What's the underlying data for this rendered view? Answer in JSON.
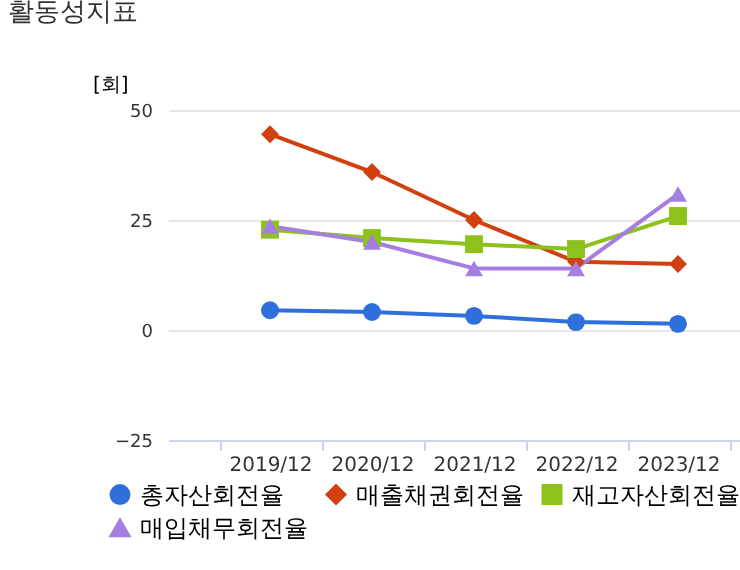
{
  "chart_data": {
    "type": "line",
    "title": "활동성지표",
    "ylabel": "[회]",
    "categories": [
      "2019/12",
      "2020/12",
      "2021/12",
      "2022/12",
      "2023/12"
    ],
    "series": [
      {
        "name": "총자산회전율",
        "color": "#2e6fdc",
        "marker": "circle",
        "values": [
          4.5,
          4.1,
          3.2,
          1.8,
          1.4
        ]
      },
      {
        "name": "매출채권회전율",
        "color": "#d1410f",
        "marker": "diamond",
        "values": [
          44.5,
          35.9,
          25,
          15.5,
          15
        ]
      },
      {
        "name": "재고자산회전율",
        "color": "#8cc21b",
        "marker": "square",
        "values": [
          22.8,
          20.9,
          19.5,
          18.4,
          25.9
        ]
      },
      {
        "name": "매입채무회전율",
        "color": "#a57ee0",
        "marker": "triangle",
        "values": [
          23.6,
          20,
          14,
          14,
          30.9
        ]
      }
    ],
    "ylim": [
      -25,
      50
    ],
    "yticks": [
      -25,
      0,
      25,
      50
    ],
    "grid": "y",
    "legend": "bottom"
  }
}
